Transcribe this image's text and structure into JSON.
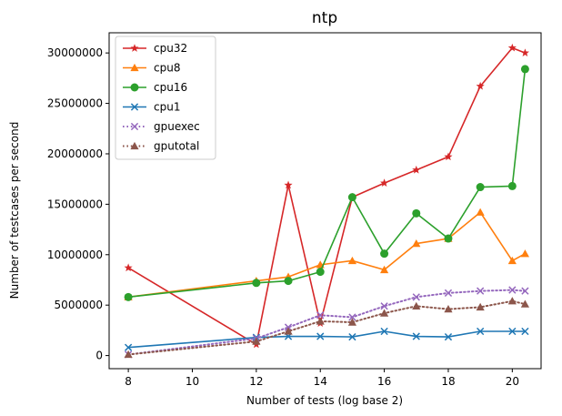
{
  "chart_data": {
    "type": "line",
    "title": "ntp",
    "xlabel": "Number of tests (log base 2)",
    "ylabel": "Number of testcases per second",
    "xlim": [
      7.4,
      20.9
    ],
    "ylim": [
      -1300000,
      32000000
    ],
    "xticks": [
      8,
      10,
      12,
      14,
      16,
      18,
      20
    ],
    "yticks": [
      0,
      5000000,
      10000000,
      15000000,
      20000000,
      25000000,
      30000000
    ],
    "xtick_labels": [
      "8",
      "10",
      "12",
      "14",
      "16",
      "18",
      "20"
    ],
    "ytick_labels": [
      "0",
      "5000000",
      "10000000",
      "15000000",
      "20000000",
      "25000000",
      "30000000"
    ],
    "grid": false,
    "legend_position": "top-left",
    "series": [
      {
        "name": "cpu32",
        "color": "#d62728",
        "marker": "star",
        "linestyle": "solid",
        "x": [
          8,
          12,
          13,
          14,
          15,
          16,
          17,
          18,
          19,
          20,
          20.4
        ],
        "y": [
          8700000,
          1100000,
          16900000,
          3200000,
          15700000,
          17100000,
          18400000,
          19700000,
          26700000,
          30500000,
          30000000
        ]
      },
      {
        "name": "cpu8",
        "color": "#ff7f0e",
        "marker": "triangle",
        "linestyle": "solid",
        "x": [
          8,
          12,
          13,
          14,
          15,
          16,
          17,
          18,
          19,
          20,
          20.4
        ],
        "y": [
          5800000,
          7400000,
          7800000,
          9000000,
          9400000,
          8500000,
          11100000,
          11600000,
          14200000,
          9400000,
          10100000
        ]
      },
      {
        "name": "cpu16",
        "color": "#2ca02c",
        "marker": "circle",
        "linestyle": "solid",
        "x": [
          8,
          12,
          13,
          14,
          15,
          16,
          17,
          18,
          19,
          20,
          20.4
        ],
        "y": [
          5800000,
          7200000,
          7400000,
          8300000,
          15700000,
          10100000,
          14100000,
          11600000,
          16700000,
          16800000,
          28400000
        ]
      },
      {
        "name": "cpu1",
        "color": "#1f77b4",
        "marker": "x",
        "linestyle": "solid",
        "x": [
          8,
          12,
          13,
          14,
          15,
          16,
          17,
          18,
          19,
          20,
          20.4
        ],
        "y": [
          800000,
          1800000,
          1900000,
          1900000,
          1850000,
          2400000,
          1900000,
          1850000,
          2400000,
          2400000,
          2400000
        ]
      },
      {
        "name": "gpuexec",
        "color": "#9467bd",
        "marker": "x",
        "linestyle": "dotted",
        "x": [
          8,
          12,
          13,
          14,
          15,
          16,
          17,
          18,
          19,
          20,
          20.4
        ],
        "y": [
          100000,
          1700000,
          2800000,
          4000000,
          3800000,
          4900000,
          5800000,
          6200000,
          6400000,
          6500000,
          6400000
        ]
      },
      {
        "name": "gputotal",
        "color": "#8c564b",
        "marker": "triangle",
        "linestyle": "dotted",
        "x": [
          8,
          12,
          13,
          14,
          15,
          16,
          17,
          18,
          19,
          20,
          20.4
        ],
        "y": [
          100000,
          1400000,
          2400000,
          3400000,
          3300000,
          4200000,
          4900000,
          4600000,
          4800000,
          5400000,
          5100000
        ]
      }
    ]
  }
}
